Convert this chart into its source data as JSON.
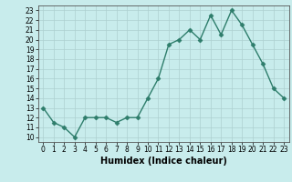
{
  "xlabel": "Humidex (Indice chaleur)",
  "x": [
    0,
    1,
    2,
    3,
    4,
    5,
    6,
    7,
    8,
    9,
    10,
    11,
    12,
    13,
    14,
    15,
    16,
    17,
    18,
    19,
    20,
    21,
    22,
    23
  ],
  "y": [
    13,
    11.5,
    11,
    10,
    12,
    12,
    12,
    11.5,
    12,
    12,
    14,
    16,
    19.5,
    20,
    21,
    20,
    22.5,
    20.5,
    23,
    21.5,
    19.5,
    17.5,
    15,
    14
  ],
  "line_color": "#2e7d6b",
  "marker": "D",
  "marker_size": 2.5,
  "bg_color": "#c8ecec",
  "grid_color": "#add0d0",
  "xlim": [
    -0.5,
    23.5
  ],
  "ylim": [
    9.5,
    23.5
  ],
  "yticks": [
    10,
    11,
    12,
    13,
    14,
    15,
    16,
    17,
    18,
    19,
    20,
    21,
    22,
    23
  ],
  "xticks": [
    0,
    1,
    2,
    3,
    4,
    5,
    6,
    7,
    8,
    9,
    10,
    11,
    12,
    13,
    14,
    15,
    16,
    17,
    18,
    19,
    20,
    21,
    22,
    23
  ],
  "tick_fontsize": 5.5,
  "xlabel_fontsize": 7,
  "linewidth": 1.0,
  "spine_color": "#555555"
}
